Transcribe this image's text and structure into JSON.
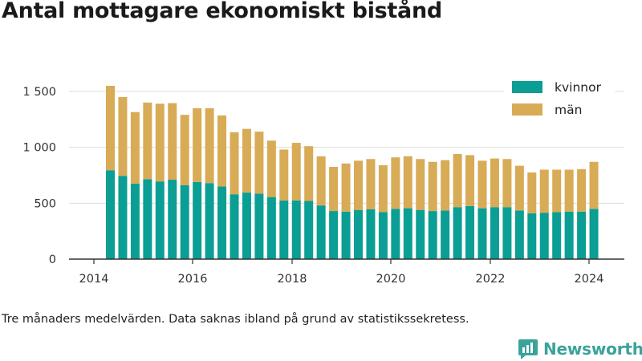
{
  "title": "Antal mottagare ekonomiskt bistånd",
  "note": "Tre månaders medelvärden. Data saknas ibland på grund av statistikssekretess.",
  "brand": "Newsworthy",
  "colors": {
    "kvinnor": "#0a9e94",
    "man": "#d8ab56",
    "grid": "#dddddd",
    "axis": "#333333",
    "brand": "#3aa39a"
  },
  "chart_data": {
    "type": "bar",
    "stacked": true,
    "x_ticks": [
      "2014",
      "2016",
      "2018",
      "2020",
      "2022",
      "2024"
    ],
    "y_ticks": [
      0,
      500,
      1000,
      1500
    ],
    "y_tick_labels": [
      "0",
      "500",
      "1 000",
      "1 500"
    ],
    "ylim": [
      0,
      1600
    ],
    "legend_position": "top-right",
    "legend": [
      "kvinnor",
      "män"
    ],
    "series": [
      {
        "name": "kvinnor",
        "values": [
          795,
          745,
          675,
          715,
          695,
          710,
          660,
          690,
          680,
          650,
          580,
          595,
          585,
          555,
          525,
          525,
          520,
          480,
          430,
          425,
          440,
          445,
          420,
          450,
          455,
          440,
          430,
          435,
          465,
          475,
          455,
          465,
          465,
          435,
          410,
          415,
          420,
          425,
          425,
          450
        ]
      },
      {
        "name": "män",
        "values": [
          755,
          705,
          640,
          685,
          695,
          685,
          630,
          660,
          670,
          635,
          555,
          570,
          555,
          505,
          455,
          515,
          490,
          440,
          395,
          430,
          440,
          450,
          420,
          460,
          465,
          455,
          440,
          450,
          475,
          455,
          425,
          435,
          430,
          400,
          365,
          385,
          380,
          375,
          380,
          420
        ]
      }
    ]
  }
}
